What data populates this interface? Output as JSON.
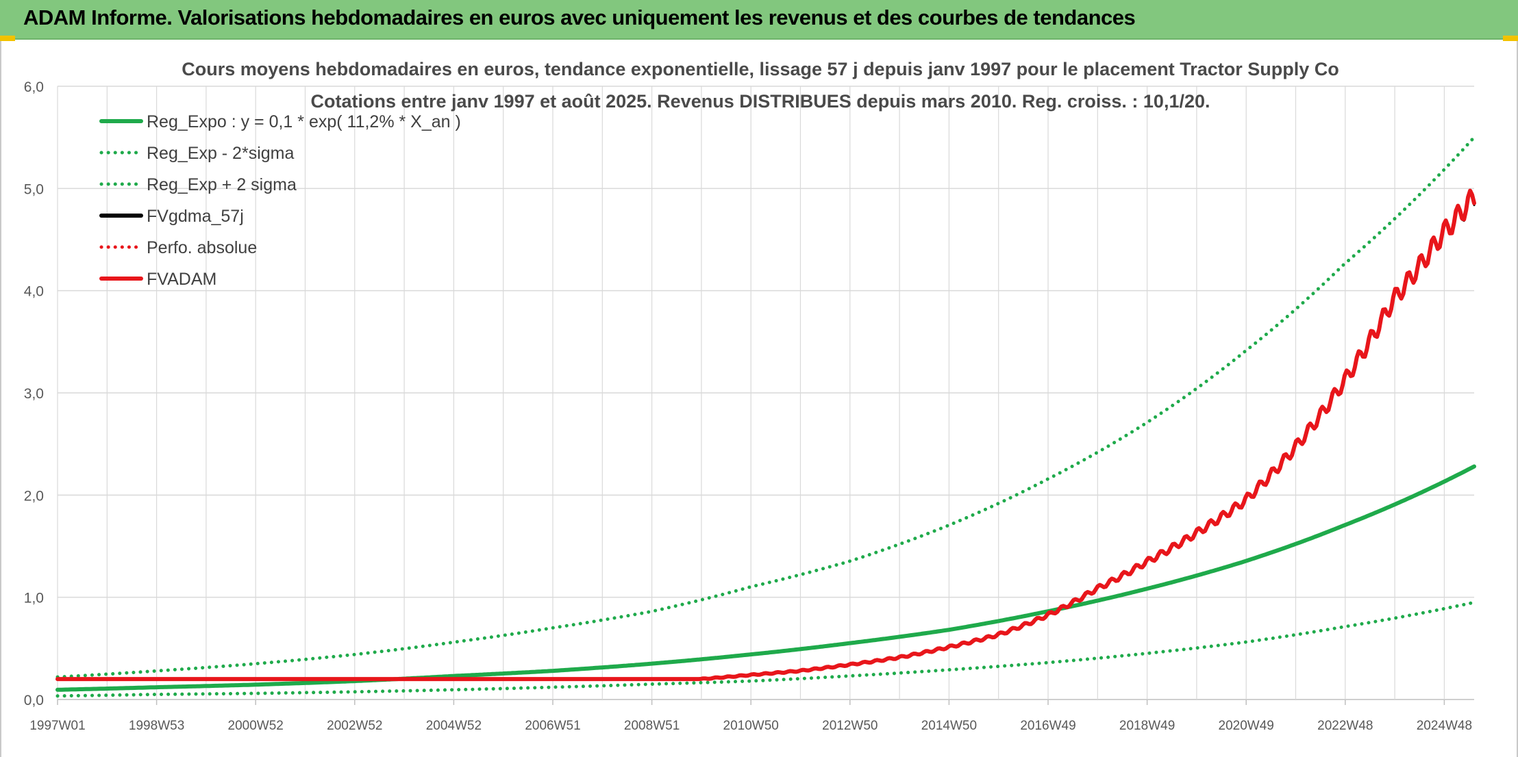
{
  "header": {
    "title": "ADAM Informe. Valorisations hebdomadaires en euros avec uniquement les revenus et des courbes de tendances"
  },
  "colors": {
    "header_bg": "#82c77e",
    "green": "#1faa4b",
    "red": "#e8161b",
    "black": "#000000",
    "grid": "#d9d9d9"
  },
  "chart_data": {
    "type": "line",
    "title": "Cours moyens hebdomadaires en euros, tendance exponentielle, lissage 57 j depuis janv 1997 pour le placement Tractor Supply Co",
    "subtitle": "Cotations entre janv 1997 et août 2025. Revenus DISTRIBUES depuis mars 2010. Reg. croiss. : 10,1/20.",
    "xlabel": "",
    "ylabel": "",
    "ylim": [
      0,
      6
    ],
    "yticks": [
      "0,0",
      "1,0",
      "2,0",
      "3,0",
      "4,0",
      "5,0",
      "6,0"
    ],
    "x_tick_labels": [
      "1997W01",
      "1998W53",
      "2000W52",
      "2002W52",
      "2004W52",
      "2006W51",
      "2008W51",
      "2010W50",
      "2012W50",
      "2014W50",
      "2016W49",
      "2018W49",
      "2020W49",
      "2022W48",
      "2024W48"
    ],
    "x_range_years": [
      1997.0,
      2025.65
    ],
    "grid": true,
    "legend_position": "top-left",
    "legend": [
      {
        "name": "Reg_Expo : y = 0,1 * exp( 11,2% *  X_an )",
        "style": "solid",
        "color": "#1faa4b"
      },
      {
        "name": "Reg_Exp - 2*sigma",
        "style": "dotted",
        "color": "#1faa4b"
      },
      {
        "name": "Reg_Exp + 2 sigma",
        "style": "dotted",
        "color": "#1faa4b"
      },
      {
        "name": "FVgdma_57j",
        "style": "solid",
        "color": "#000000"
      },
      {
        "name": "Perfo. absolue",
        "style": "dotted",
        "color": "#e8161b"
      },
      {
        "name": "FVADAM",
        "style": "solid",
        "color": "#e8161b"
      }
    ],
    "series": [
      {
        "name": "Reg_Expo : y = 0,1 * exp( 11,2% *  X_an )",
        "x": [
          1997,
          1999,
          2001,
          2003,
          2005,
          2007,
          2009,
          2011,
          2013,
          2015,
          2017,
          2019,
          2021,
          2023,
          2025.65
        ],
        "y": [
          0.095,
          0.12,
          0.145,
          0.18,
          0.23,
          0.28,
          0.35,
          0.44,
          0.55,
          0.68,
          0.86,
          1.08,
          1.35,
          1.7,
          2.28
        ]
      },
      {
        "name": "Reg_Exp - 2*sigma",
        "x": [
          1997,
          1999,
          2001,
          2003,
          2005,
          2007,
          2009,
          2011,
          2013,
          2015,
          2017,
          2019,
          2021,
          2023,
          2025.65
        ],
        "y": [
          0.035,
          0.05,
          0.06,
          0.075,
          0.095,
          0.12,
          0.15,
          0.18,
          0.23,
          0.29,
          0.36,
          0.45,
          0.56,
          0.71,
          0.95
        ]
      },
      {
        "name": "Reg_Exp + 2 sigma",
        "x": [
          1997,
          1999,
          2001,
          2003,
          2005,
          2007,
          2009,
          2011,
          2013,
          2015,
          2017,
          2019,
          2021,
          2023,
          2025.65
        ],
        "y": [
          0.22,
          0.28,
          0.35,
          0.44,
          0.56,
          0.7,
          0.86,
          1.1,
          1.35,
          1.7,
          2.15,
          2.7,
          3.4,
          4.25,
          5.5
        ]
      },
      {
        "name": "FVgdma_57j",
        "x": [
          1997,
          2000,
          2003,
          2006,
          2008,
          2010,
          2011,
          2012,
          2013,
          2014,
          2015,
          2016,
          2017,
          2018,
          2019,
          2020,
          2021,
          2022,
          2023,
          2024,
          2025,
          2025.65
        ],
        "y": [
          0.2,
          0.2,
          0.2,
          0.2,
          0.2,
          0.2,
          0.24,
          0.28,
          0.34,
          0.41,
          0.51,
          0.63,
          0.82,
          1.08,
          1.34,
          1.62,
          1.94,
          2.45,
          3.1,
          3.9,
          4.55,
          4.9
        ]
      },
      {
        "name": "FVADAM",
        "x": [
          1997,
          2000,
          2003,
          2006,
          2008,
          2010,
          2011,
          2012,
          2013,
          2014,
          2015,
          2016,
          2017,
          2018,
          2019,
          2020,
          2021,
          2022,
          2023,
          2024,
          2025,
          2025.65
        ],
        "y": [
          0.2,
          0.2,
          0.2,
          0.2,
          0.2,
          0.2,
          0.24,
          0.28,
          0.34,
          0.41,
          0.51,
          0.63,
          0.82,
          1.08,
          1.34,
          1.62,
          1.94,
          2.45,
          3.1,
          3.9,
          4.55,
          4.92
        ]
      }
    ]
  }
}
